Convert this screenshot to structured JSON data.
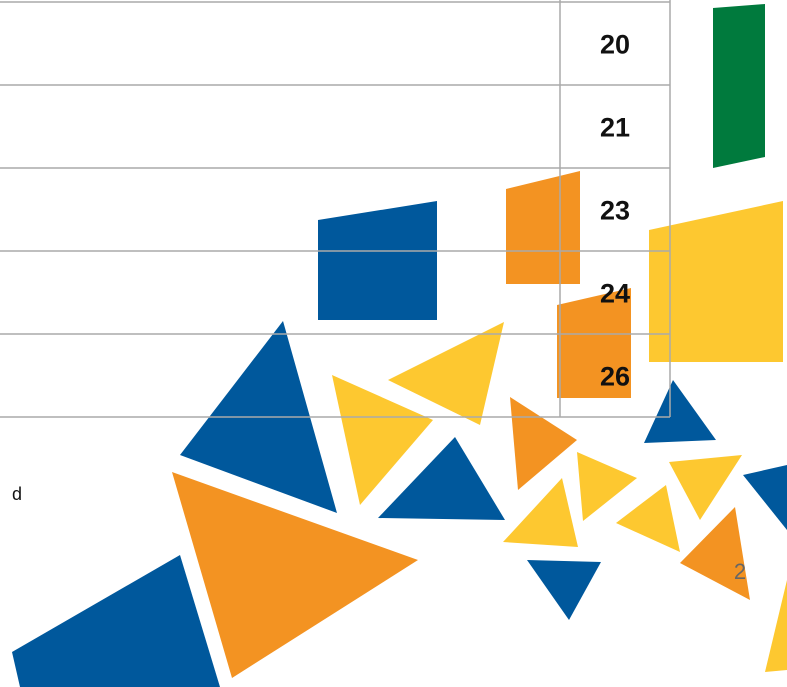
{
  "table": {
    "rows": [
      [
        "",
        "20"
      ],
      [
        "",
        "21"
      ],
      [
        "",
        "23"
      ],
      [
        "",
        "24"
      ],
      [
        "",
        "26"
      ]
    ]
  },
  "text_fragment": "d",
  "page_number": "2"
}
